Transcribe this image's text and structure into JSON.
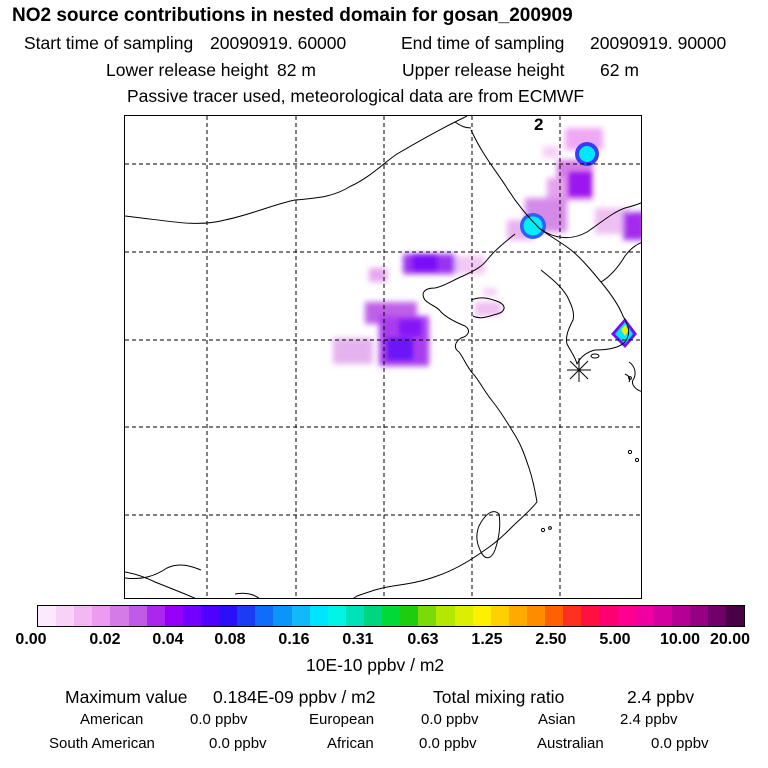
{
  "title": "NO2 source contributions in nested domain for gosan_200909",
  "header": {
    "start_label": "Start time of sampling",
    "start_value": "20090919. 60000",
    "end_label": "End time of sampling",
    "end_value": "20090919. 90000",
    "lower_label": "Lower release height",
    "lower_value": "82 m",
    "upper_label": "Upper release height",
    "upper_value": "62 m",
    "tracer_note": "Passive tracer used, meteorological data are from ECMWF"
  },
  "map": {
    "panel_label": "2"
  },
  "colorbar": {
    "colors": [
      "#fde9fd",
      "#f9d2f9",
      "#f3b8f4",
      "#eb9cf0",
      "#d57be8",
      "#c25ae8",
      "#aa28ee",
      "#9600f8",
      "#7300ff",
      "#4f00ff",
      "#2a10f8",
      "#1a3cf4",
      "#0f6ef7",
      "#0b94fa",
      "#11b9fb",
      "#00e5ff",
      "#00f5e8",
      "#00e0b9",
      "#00d67f",
      "#00da39",
      "#1ecd0f",
      "#7bdb0a",
      "#b5e705",
      "#dcef00",
      "#fff000",
      "#ffd000",
      "#ffaa00",
      "#ff8c00",
      "#ff6000",
      "#ff3020",
      "#ff1040",
      "#ff0070",
      "#ff0090",
      "#f000a0",
      "#d400a0",
      "#b40094",
      "#960082",
      "#70006a",
      "#4a0046"
    ],
    "tick_labels": [
      "0.00",
      "0.02",
      "0.04",
      "0.08",
      "0.16",
      "0.31",
      "0.63",
      "1.25",
      "2.50",
      "5.00",
      "10.00",
      "20.00"
    ],
    "unit": "10E-10 ppbv / m2"
  },
  "summary": {
    "max_label": "Maximum value",
    "max_value": "0.184E-09 ppbv / m2",
    "total_label": "Total mixing ratio",
    "total_value": "2.4 ppbv",
    "regions": [
      {
        "name": "American",
        "value": "0.0 ppbv"
      },
      {
        "name": "European",
        "value": "0.0 ppbv"
      },
      {
        "name": "Asian",
        "value": "2.4 ppbv"
      },
      {
        "name": "South American",
        "value": "0.0 ppbv"
      },
      {
        "name": "African",
        "value": "0.0 ppbv"
      },
      {
        "name": "Australian",
        "value": "0.0 ppbv"
      }
    ]
  }
}
